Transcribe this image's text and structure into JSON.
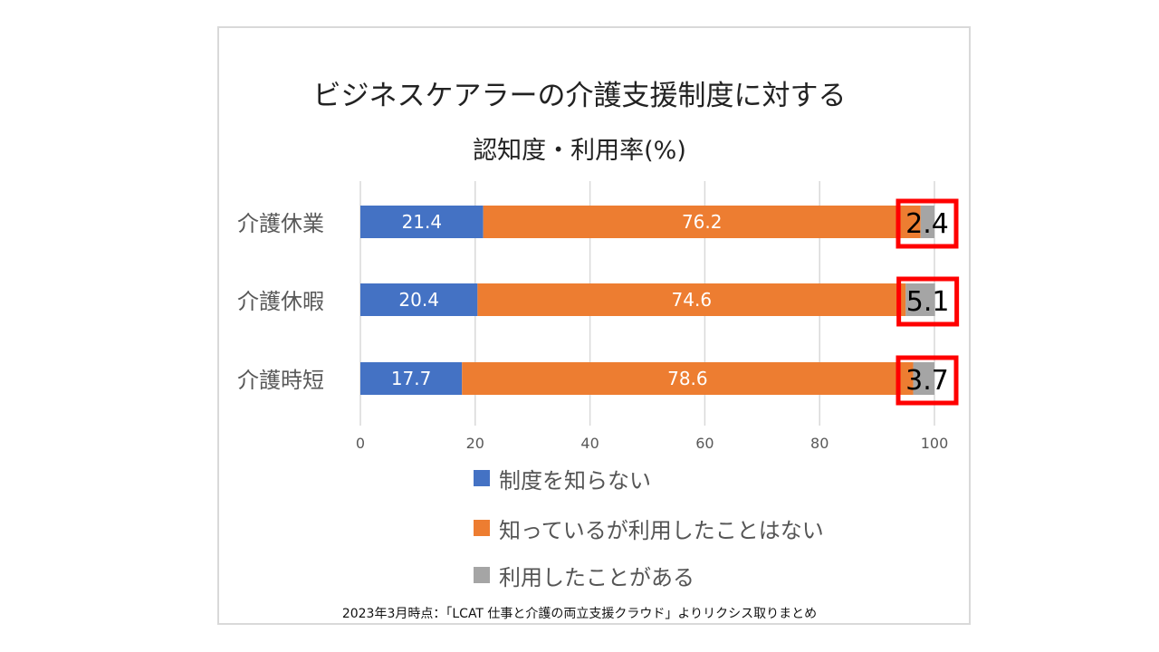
{
  "chart_data": {
    "type": "bar",
    "orientation": "horizontal",
    "stacked": true,
    "title_line1": "ビジネスケアラーの介護支援制度に対する",
    "title_line2": "認知度・利用率(%)",
    "categories": [
      "介護休業",
      "介護休暇",
      "介護時短"
    ],
    "series": [
      {
        "name": "制度を知らない",
        "color": "#4472c4",
        "values": [
          21.4,
          20.4,
          17.7
        ]
      },
      {
        "name": "知っているが利用したことはない",
        "color": "#ed7d31",
        "values": [
          76.2,
          74.6,
          78.6
        ]
      },
      {
        "name": "利用したことがある",
        "color": "#a5a5a5",
        "values": [
          2.4,
          5.1,
          3.7
        ]
      }
    ],
    "xlim": [
      0,
      100
    ],
    "xticks": [
      "0",
      "20",
      "40",
      "60",
      "80",
      "100"
    ],
    "grid": true,
    "legend_position": "bottom",
    "highlighted_series": "利用したことがある",
    "highlight_color": "#ff0000"
  },
  "source_note": "2023年3月時点：「LCAT 仕事と介護の両立支援クラウド」よりリクシス取りまとめ"
}
